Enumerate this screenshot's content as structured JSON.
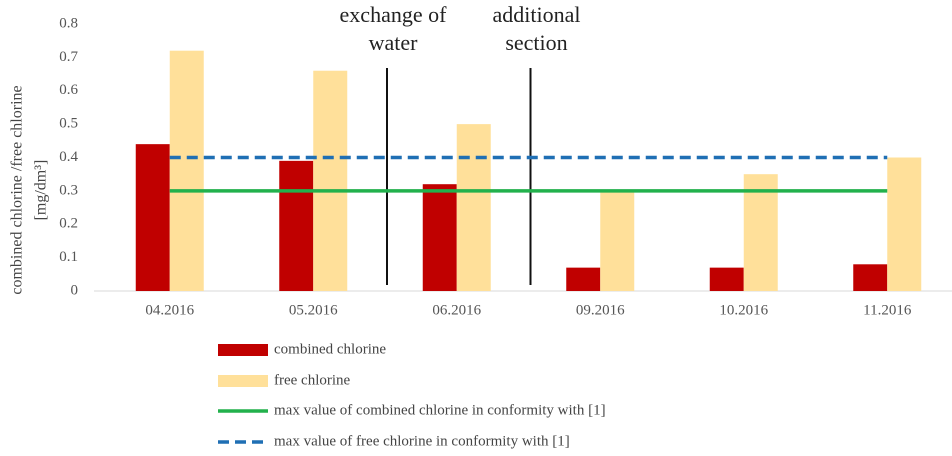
{
  "chart_data": {
    "type": "bar",
    "ylabel": [
      "combined chlorine /free chlorine",
      "[mg/dm³]"
    ],
    "categories": [
      "04.2016",
      "05.2016",
      "06.2016",
      "09.2016",
      "10.2016",
      "11.2016"
    ],
    "series": [
      {
        "name": "combined chlorine",
        "color": "#c00000",
        "values": [
          0.44,
          0.39,
          0.32,
          0.07,
          0.07,
          0.08
        ]
      },
      {
        "name": "free chlorine",
        "color": "#ffe09a",
        "values": [
          0.72,
          0.66,
          0.5,
          0.3,
          0.35,
          0.4
        ]
      }
    ],
    "reference_lines": [
      {
        "name": "max value of combined chlorine in conformity with [1]",
        "value": 0.3,
        "color": "#22b14c",
        "style": "solid"
      },
      {
        "name": "max value of free chlorine in conformity with [1]",
        "value": 0.4,
        "color": "#1f6fb4",
        "style": "dashed"
      }
    ],
    "annotations": [
      [
        "exchange of",
        "water"
      ],
      [
        "additional",
        "section"
      ]
    ],
    "ylim": [
      0,
      0.8
    ],
    "yticks": [
      0,
      0.1,
      0.2,
      0.3,
      0.4,
      0.5,
      0.6,
      0.7,
      0.8
    ],
    "grid": false
  }
}
